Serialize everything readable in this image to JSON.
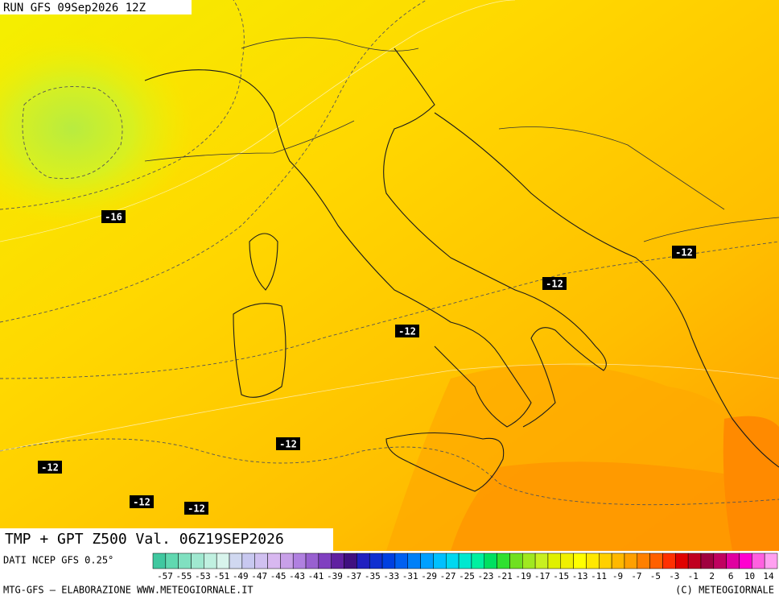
{
  "header": {
    "run": "RUN GFS 09Sep2026 12Z"
  },
  "map": {
    "contour_labels": [
      "-16",
      "-12",
      "-12",
      "-12",
      "-12",
      "-12",
      "-12",
      "-12"
    ]
  },
  "footer": {
    "title": "TMP + GPT Z500 Val. 06Z19SEP2026",
    "source": "DATI NCEP GFS 0.25°",
    "credit_left": "MTG-GFS — ELABORAZIONE WWW.METEOGIORNALE.IT",
    "credit_right": "(C) METEOGIORNALE"
  },
  "colorbar": {
    "labels": [
      "-57",
      "-55",
      "-53",
      "-51",
      "-49",
      "-47",
      "-45",
      "-43",
      "-41",
      "-39",
      "-37",
      "-35",
      "-33",
      "-31",
      "-29",
      "-27",
      "-25",
      "-23",
      "-21",
      "-19",
      "-17",
      "-15",
      "-13",
      "-11",
      "-9",
      "-7",
      "-5",
      "-3",
      "-1",
      "2",
      "6",
      "10",
      "14"
    ],
    "colors": [
      "#40c8a0",
      "#60d8b0",
      "#80e0c0",
      "#a0e8d0",
      "#c0f0e0",
      "#d8f4ec",
      "#d0d8f0",
      "#c8c8f0",
      "#d0c0f0",
      "#d8b8f0",
      "#c8a0e8",
      "#b080e0",
      "#9860d0",
      "#8040c0",
      "#6020a0",
      "#401080",
      "#2020c0",
      "#1030d0",
      "#0040e0",
      "#0060f0",
      "#0080f8",
      "#00a0ff",
      "#00c0ff",
      "#00d8f0",
      "#00e8d0",
      "#00f0a0",
      "#00e060",
      "#30e030",
      "#70e020",
      "#a0e820",
      "#c8f020",
      "#e0f000",
      "#f0f000",
      "#ffff00",
      "#ffe800",
      "#ffd000",
      "#ffb800",
      "#ffa000",
      "#ff8000",
      "#ff6000",
      "#ff3000",
      "#e00000",
      "#c00020",
      "#a00040",
      "#c00060",
      "#e000a0",
      "#ff00d0",
      "#ff60e0",
      "#ffa0f0"
    ]
  }
}
